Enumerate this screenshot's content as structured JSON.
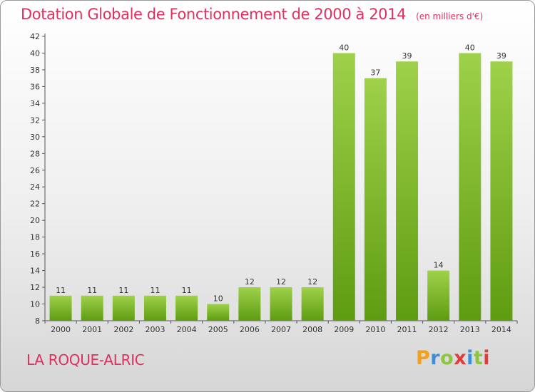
{
  "title": "Dotation Globale de Fonctionnement de 2000 à 2014",
  "unit": "(en milliers d'€)",
  "commune": "LA ROQUE-ALRIC",
  "brand": {
    "letters": [
      "P",
      "r",
      "o",
      "x",
      "i",
      "t",
      "i"
    ],
    "colors": [
      "#f0a020",
      "#3a8fd8",
      "#8cc63f",
      "#e23b3b",
      "#3a8fd8",
      "#8cc63f",
      "#e23b3b"
    ]
  },
  "colors": {
    "bar_light": "#9fd14b",
    "bar_dark": "#5e9c12",
    "text_accent": "#e0305e"
  },
  "chart_data": {
    "type": "bar",
    "categories": [
      "2000",
      "2001",
      "2002",
      "2003",
      "2004",
      "2005",
      "2006",
      "2007",
      "2008",
      "2009",
      "2010",
      "2011",
      "2012",
      "2013",
      "2014"
    ],
    "values": [
      11,
      11,
      11,
      11,
      11,
      10,
      12,
      12,
      12,
      40,
      37,
      39,
      14,
      40,
      39
    ],
    "ylim": [
      8,
      42
    ],
    "yticks": [
      8,
      10,
      12,
      14,
      16,
      18,
      20,
      22,
      24,
      26,
      28,
      30,
      32,
      34,
      36,
      38,
      40,
      42
    ],
    "grid": false
  }
}
